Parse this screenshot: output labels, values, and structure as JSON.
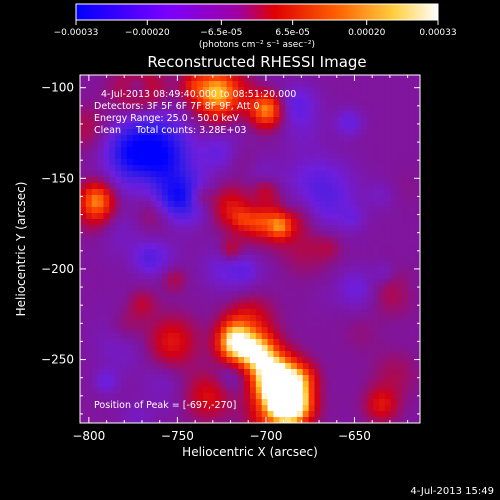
{
  "colorbar": {
    "tick_labels": [
      "-0.00033",
      "-0.00020",
      "-6.5e-05",
      "6.5e-05",
      "0.00020",
      "0.00033"
    ],
    "tick_values": [
      -0.00033,
      -0.0002,
      -6.5e-05,
      6.5e-05,
      0.0002,
      0.00033
    ],
    "unit_label": "(photons cm⁻² s⁻¹ asec⁻²)",
    "range": [
      -0.00033,
      0.00033
    ],
    "colors": [
      "#0000ff",
      "#8000ff",
      "#ff0000",
      "#ff8000",
      "#ffff40",
      "#ffffff"
    ]
  },
  "info": {
    "time_range": "4-Jul-2013 08:49:40.000 to 08:51:20.000",
    "detectors": "Detectors: 3F 5F 6F 7F 8F 9F, Att 0",
    "energy_range": "Energy Range: 25.0 - 50.0 keV",
    "clean": "Clean     Total counts: 3.28E+03",
    "peak": "Position of Peak = [-697,-270]"
  },
  "footer": {
    "timestamp": "4-Jul-2013 15:49"
  },
  "chart_data": {
    "type": "heatmap",
    "title": "Reconstructed RHESSI Image",
    "xlabel": "Heliocentric X (arcsec)",
    "ylabel": "Heliocentric Y (arcsec)",
    "xlim": [
      -805,
      -613
    ],
    "ylim": [
      -285,
      -93
    ],
    "x_ticks": [
      -800,
      -750,
      -700,
      -650
    ],
    "x_tick_labels": [
      "−800",
      "−750",
      "−700",
      "−650"
    ],
    "y_ticks": [
      -250,
      -200,
      -150,
      -100
    ],
    "y_tick_labels": [
      "−250",
      "−200",
      "−150",
      "−100"
    ],
    "peak_position": [
      -697,
      -270
    ],
    "colormap": "RHESSI blue-purple-red-yellow-white",
    "value_range": [
      -0.00033,
      0.00033
    ]
  }
}
